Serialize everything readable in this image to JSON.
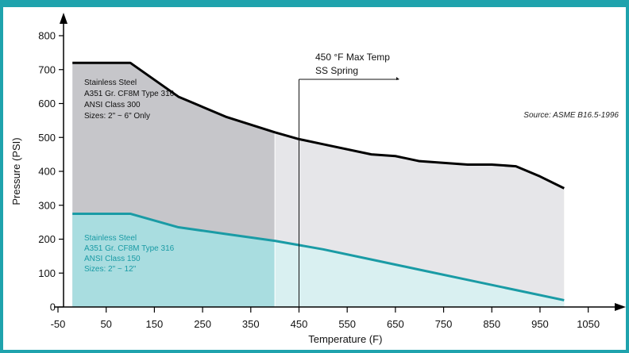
{
  "chart_data": {
    "type": "area",
    "xlabel": "Temperature (F)",
    "ylabel": "Pressure (PSI)",
    "xlim": [
      -50,
      1100
    ],
    "ylim": [
      0,
      850
    ],
    "x_ticks": [
      "-50",
      "50",
      "150",
      "250",
      "350",
      "450",
      "550",
      "650",
      "750",
      "850",
      "950",
      "1050"
    ],
    "x_tick_values": [
      -50,
      50,
      150,
      250,
      350,
      450,
      550,
      650,
      750,
      850,
      950,
      1050
    ],
    "y_ticks": [
      "0",
      "100",
      "200",
      "300",
      "400",
      "500",
      "600",
      "700",
      "800"
    ],
    "y_tick_values": [
      0,
      100,
      200,
      300,
      400,
      500,
      600,
      700,
      800
    ],
    "series": [
      {
        "x": [
          -20,
          100,
          200,
          300,
          400,
          450,
          500,
          600,
          650,
          700,
          800,
          850,
          900,
          950,
          1000
        ],
        "y": [
          720,
          720,
          620,
          560,
          515,
          495,
          480,
          450,
          445,
          430,
          420,
          420,
          415,
          385,
          350
        ],
        "line_color": "#000000",
        "fill_color": "#c6c6ca",
        "fill_color_light": "#e6e6e9",
        "light_from_x": 400,
        "label_lines": [
          "Stainless Steel",
          "A351 Gr. CF8M Type 316",
          "ANSI Class 300",
          "Sizes:  2\" ~ 6\" Only"
        ],
        "label_color": "#111111"
      },
      {
        "x": [
          -20,
          100,
          200,
          300,
          400,
          500,
          600,
          700,
          800,
          900,
          1000
        ],
        "y": [
          275,
          275,
          235,
          215,
          195,
          170,
          140,
          110,
          80,
          50,
          20
        ],
        "line_color": "#1a9ba5",
        "fill_color": "#a9dde0",
        "fill_color_light": "#d9f0f1",
        "light_from_x": 400,
        "label_lines": [
          "Stainless Steel",
          "A351  Gr. CF8M Type 316",
          " ANSI Class 150",
          "Sizes:  2\" ~ 12\""
        ],
        "label_color": "#1a9ba5"
      }
    ],
    "annotations": [
      {
        "lines": [
          "450 °F Max Temp",
          "SS Spring"
        ],
        "x": 450
      }
    ],
    "source": "Source: ASME B16.5-1996",
    "grid": false,
    "legend": "none"
  }
}
